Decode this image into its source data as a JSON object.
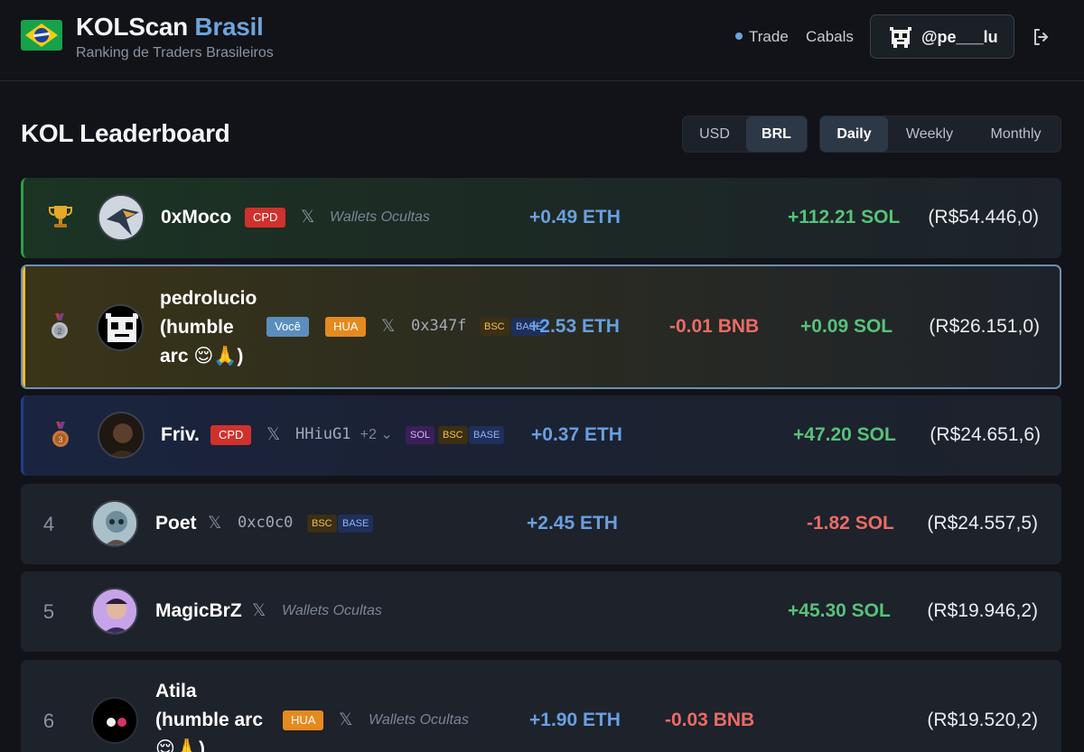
{
  "header": {
    "brand_main": "KOLScan",
    "brand_accent": "Brasil",
    "tagline": "Ranking de Traders Brasileiros",
    "nav_trade": "Trade",
    "nav_cabals": "Cabals",
    "user_handle": "@pe___lu"
  },
  "page_title": "KOL Leaderboard",
  "currency_toggle": {
    "usd": "USD",
    "brl": "BRL",
    "selected": "BRL"
  },
  "period_toggle": {
    "daily": "Daily",
    "weekly": "Weekly",
    "monthly": "Monthly",
    "selected": "Daily"
  },
  "rows": [
    {
      "rank": "1",
      "name": "0xMoco",
      "badge": "CPD",
      "wallet": "Wallets Ocultas",
      "eth": "+0.49 ETH",
      "sol": "+112.21 SOL",
      "brl": "(R$54.446,0)"
    },
    {
      "rank": "2",
      "name_l1": "pedrolucio",
      "name_l2": "(humble",
      "name_l3": "arc 😌🙏)",
      "tag_you": "Você",
      "badge": "HUA",
      "wallet": "0x347f",
      "chip1": "BSC",
      "chip2": "BASE",
      "eth": "+2.53 ETH",
      "bnb": "-0.01 BNB",
      "sol": "+0.09 SOL",
      "brl": "(R$26.151,0)"
    },
    {
      "rank": "3",
      "name": "Friv.",
      "badge": "CPD",
      "wallet": "HHiuG1",
      "wallet_more": "+2",
      "chip1": "SOL",
      "chip2": "BSC",
      "chip3": "BASE",
      "eth": "+0.37 ETH",
      "sol": "+47.20 SOL",
      "brl": "(R$24.651,6)"
    },
    {
      "rank": "4",
      "name": "Poet",
      "wallet": "0xc0c0",
      "chip1": "BSC",
      "chip2": "BASE",
      "eth": "+2.45 ETH",
      "sol": "-1.82 SOL",
      "brl": "(R$24.557,5)"
    },
    {
      "rank": "5",
      "name": "MagicBrZ",
      "wallet": "Wallets Ocultas",
      "sol": "+45.30 SOL",
      "brl": "(R$19.946,2)"
    },
    {
      "rank": "6",
      "name_l1": "Atila",
      "name_l2": "(humble arc",
      "name_l3": "😌🙏)",
      "badge": "HUA",
      "wallet": "Wallets Ocultas",
      "eth": "+1.90 ETH",
      "bnb": "-0.03 BNB",
      "brl": "(R$19.520,2)"
    }
  ]
}
